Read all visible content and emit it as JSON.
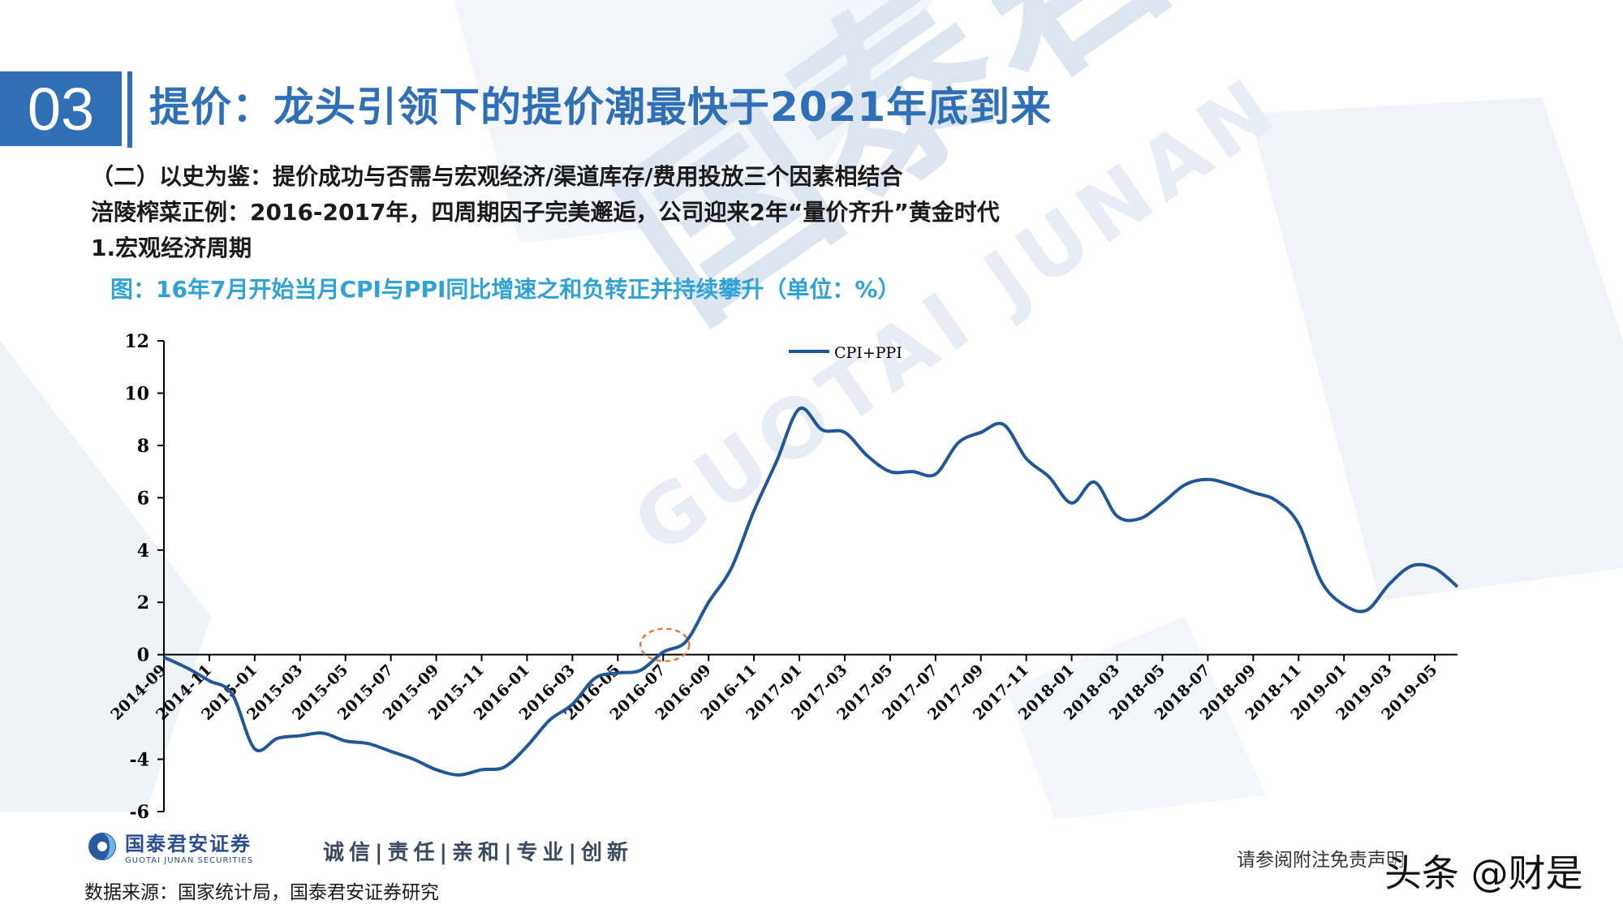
{
  "header": {
    "section_number": "03",
    "title": "提价：龙头引领下的提价潮最快于2021年底到来"
  },
  "subtitles": [
    "（二）以史为鉴：提价成功与否需与宏观经济/渠道库存/费用投放三个因素相结合",
    "涪陵榨菜正例：2016-2017年，四周期因子完美邂逅，公司迎来2年“量价齐升”黄金时代",
    "1.宏观经济周期"
  ],
  "chart_caption": "图：16年7月开始当月CPI与PPI同比增速之和负转正并持续攀升（单位：%）",
  "watermark": {
    "cn": "国泰君安",
    "en": "GUOTAI JUNAN"
  },
  "footer": {
    "logo_cn": "国泰君安证券",
    "logo_en": "GUOTAI JUNAN SECURITIES",
    "slogan": "诚信|责任|亲和|专业|创新",
    "source": "数据来源：国家统计局，国泰君安证券研究",
    "disclaimer": "请参阅附注免责声明",
    "brand_mark": "头条 @财是"
  },
  "colors": {
    "accent": "#2f6fb5",
    "caption": "#2fa2d6",
    "series": "#1f5797"
  },
  "chart_data": {
    "type": "line",
    "title": "",
    "xlabel": "",
    "ylabel": "",
    "ylim": [
      -6,
      12
    ],
    "yticks": [
      12,
      10,
      8,
      6,
      4,
      2,
      0,
      -4,
      -6
    ],
    "xtick_labels": [
      "2014-09",
      "2014-11",
      "2015-01",
      "2015-03",
      "2015-05",
      "2015-07",
      "2015-09",
      "2015-11",
      "2016-01",
      "2016-03",
      "2016-05",
      "2016-07",
      "2016-09",
      "2016-11",
      "2017-01",
      "2017-03",
      "2017-05",
      "2017-07",
      "2017-09",
      "2017-11",
      "2018-01",
      "2018-03",
      "2018-05",
      "2018-07",
      "2018-09",
      "2018-11",
      "2019-01",
      "2019-03",
      "2019-05"
    ],
    "legend_position": "top-center",
    "grid": false,
    "highlight": {
      "x": "2016-07",
      "shape": "dashed-circle",
      "color": "#e07b39"
    },
    "series": [
      {
        "name": "CPI+PPI",
        "x": [
          "2014-09",
          "2014-10",
          "2014-11",
          "2014-12",
          "2015-01",
          "2015-02",
          "2015-03",
          "2015-04",
          "2015-05",
          "2015-06",
          "2015-07",
          "2015-08",
          "2015-09",
          "2015-10",
          "2015-11",
          "2015-12",
          "2016-01",
          "2016-02",
          "2016-03",
          "2016-04",
          "2016-05",
          "2016-06",
          "2016-07",
          "2016-08",
          "2016-09",
          "2016-10",
          "2016-11",
          "2016-12",
          "2017-01",
          "2017-02",
          "2017-03",
          "2017-04",
          "2017-05",
          "2017-06",
          "2017-07",
          "2017-08",
          "2017-09",
          "2017-10",
          "2017-11",
          "2017-12",
          "2018-01",
          "2018-02",
          "2018-03",
          "2018-04",
          "2018-05",
          "2018-06",
          "2018-07",
          "2018-08",
          "2018-09",
          "2018-10",
          "2018-11",
          "2018-12",
          "2019-01",
          "2019-02",
          "2019-03",
          "2019-04",
          "2019-05",
          "2019-06"
        ],
        "values": [
          -0.1,
          -0.5,
          -1.0,
          -1.5,
          -3.6,
          -3.2,
          -3.1,
          -3.0,
          -3.3,
          -3.4,
          -3.7,
          -4.0,
          -4.4,
          -4.6,
          -4.4,
          -4.3,
          -3.5,
          -2.5,
          -1.9,
          -0.9,
          -0.7,
          -0.6,
          0.1,
          0.5,
          2.0,
          3.3,
          5.5,
          7.4,
          9.4,
          8.6,
          8.5,
          7.6,
          7.0,
          7.0,
          6.9,
          8.1,
          8.5,
          8.8,
          7.5,
          6.8,
          5.8,
          6.6,
          5.3,
          5.2,
          5.8,
          6.5,
          6.7,
          6.5,
          6.2,
          5.9,
          5.0,
          2.8,
          1.9,
          1.7,
          2.7,
          3.4,
          3.3,
          2.6
        ]
      }
    ]
  }
}
